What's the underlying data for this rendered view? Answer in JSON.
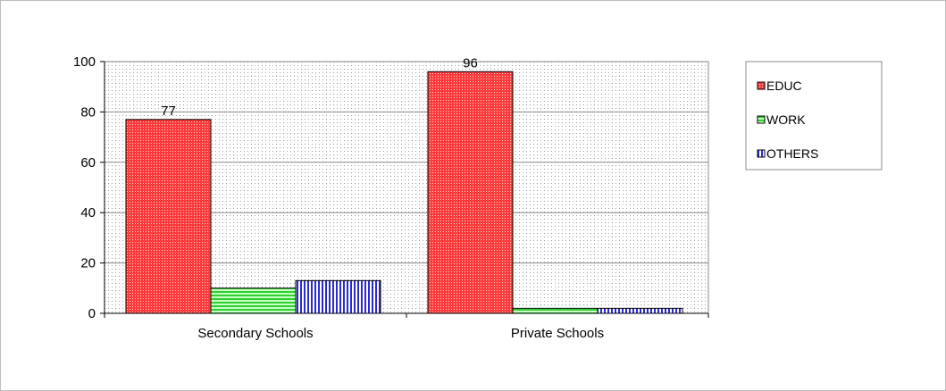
{
  "chart_data": {
    "type": "bar",
    "categories": [
      "Secondary Schools",
      "Private Schools"
    ],
    "series": [
      {
        "name": "EDUC",
        "values": [
          77,
          96
        ],
        "labels": [
          "77",
          "96"
        ]
      },
      {
        "name": "WORK",
        "values": [
          10,
          2
        ],
        "labels": [
          "",
          ""
        ]
      },
      {
        "name": "OTHERS",
        "values": [
          13,
          2
        ],
        "labels": [
          "",
          ""
        ]
      }
    ],
    "yticks": [
      "0",
      "20",
      "40",
      "60",
      "80",
      "100"
    ],
    "ylim": [
      0,
      100
    ],
    "grid": true,
    "legend_position": "right",
    "colors": {
      "EDUC": "#ff3b3b",
      "WORK": "#33dd33",
      "OTHERS": "#2b2bd6"
    }
  }
}
